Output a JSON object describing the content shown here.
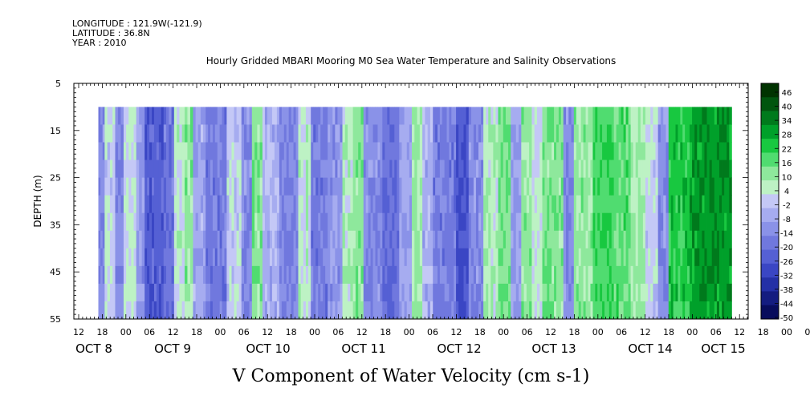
{
  "header": {
    "longitude": "LONGITUDE : 121.9W(-121.9)",
    "latitude": "LATITUDE : 36.8N",
    "year": "YEAR : 2010"
  },
  "chart_data": {
    "type": "heatmap",
    "title": "Hourly Gridded MBARI Mooring M0 Sea Water Temperature and Salinity Observations",
    "xlabel": "V Component of Water Velocity (cm s-1)",
    "ylabel": "DEPTH (m)",
    "y_ticks": [
      "5",
      "15",
      "25",
      "35",
      "45",
      "55"
    ],
    "y_range": [
      5,
      55
    ],
    "hour_ticks": [
      "12",
      "18",
      "00",
      "06",
      "12",
      "18",
      "00",
      "06",
      "12",
      "18",
      "00",
      "06",
      "12",
      "18",
      "00",
      "06",
      "12",
      "18",
      "00",
      "06",
      "12",
      "18",
      "00",
      "06",
      "12",
      "18",
      "00",
      "06",
      "12",
      "18",
      "00",
      "06"
    ],
    "day_labels": [
      "OCT 8",
      "OCT 9",
      "OCT 10",
      "OCT 11",
      "OCT 12",
      "OCT 13",
      "OCT 14",
      "OCT 15"
    ],
    "colorbar": {
      "labels": [
        "46",
        "40",
        "34",
        "28",
        "22",
        "16",
        "10",
        "4",
        "-2",
        "-8",
        "-14",
        "-20",
        "-26",
        "-32",
        "-38",
        "-44",
        "-50"
      ],
      "range": [
        -50,
        52
      ],
      "colors": [
        "#003300",
        "#00550e",
        "#007a1c",
        "#00a02a",
        "#18c840",
        "#50dc70",
        "#8ee89c",
        "#bdf2c4",
        "#c4c8f6",
        "#a6acf0",
        "#8a92e8",
        "#7078de",
        "#5560d4",
        "#3a46c4",
        "#2430a6",
        "#141c80",
        "#080c5c"
      ]
    },
    "data_extent": {
      "x_start": "OCT 7 17:00",
      "x_end": "OCT 15 10:00",
      "depth_start": 10,
      "depth_end": 55
    },
    "bands": [
      {
        "v": -12,
        "w": 6
      },
      {
        "v": 2,
        "w": 10
      },
      {
        "v": -14,
        "w": 8
      },
      {
        "v": 4,
        "w": 12
      },
      {
        "v": -10,
        "w": 8
      },
      {
        "v": -24,
        "w": 18
      },
      {
        "v": -18,
        "w": 10
      },
      {
        "v": 6,
        "w": 10
      },
      {
        "v": 12,
        "w": 8
      },
      {
        "v": -6,
        "w": 12
      },
      {
        "v": -16,
        "w": 20
      },
      {
        "v": 2,
        "w": 14
      },
      {
        "v": -12,
        "w": 10
      },
      {
        "v": 14,
        "w": 10
      },
      {
        "v": -4,
        "w": 16
      },
      {
        "v": -14,
        "w": 18
      },
      {
        "v": 6,
        "w": 12
      },
      {
        "v": -16,
        "w": 16
      },
      {
        "v": -10,
        "w": 14
      },
      {
        "v": 8,
        "w": 10
      },
      {
        "v": 14,
        "w": 10
      },
      {
        "v": -12,
        "w": 18
      },
      {
        "v": -20,
        "w": 16
      },
      {
        "v": -8,
        "w": 12
      },
      {
        "v": 10,
        "w": 10
      },
      {
        "v": -4,
        "w": 10
      },
      {
        "v": -16,
        "w": 22
      },
      {
        "v": -26,
        "w": 12
      },
      {
        "v": -12,
        "w": 14
      },
      {
        "v": 8,
        "w": 14
      },
      {
        "v": 16,
        "w": 12
      },
      {
        "v": -8,
        "w": 10
      },
      {
        "v": 12,
        "w": 10
      },
      {
        "v": 4,
        "w": 10
      },
      {
        "v": 14,
        "w": 20
      },
      {
        "v": -12,
        "w": 10
      },
      {
        "v": 12,
        "w": 18
      },
      {
        "v": 22,
        "w": 20
      },
      {
        "v": 18,
        "w": 16
      },
      {
        "v": 10,
        "w": 14
      },
      {
        "v": 2,
        "w": 12
      },
      {
        "v": -12,
        "w": 10
      },
      {
        "v": 24,
        "w": 20
      },
      {
        "v": 32,
        "w": 40
      }
    ]
  }
}
